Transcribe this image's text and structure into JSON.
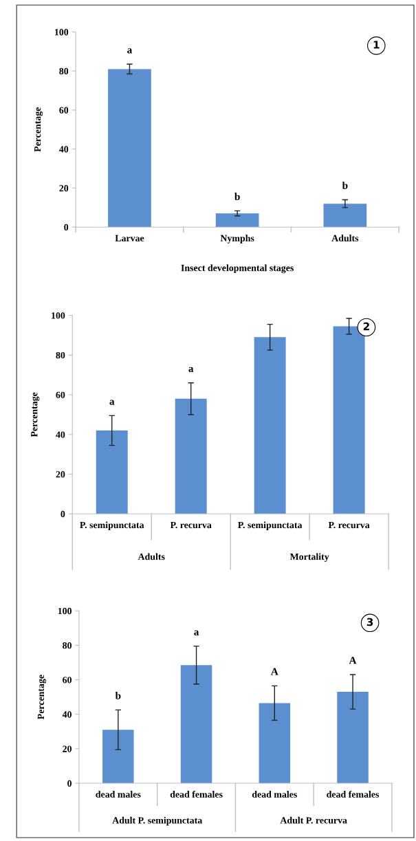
{
  "chart_data": [
    {
      "type": "bar",
      "title": "1",
      "ylabel": "Percentage",
      "xlabel": "Insect developmental stages",
      "categories": [
        "Larvae",
        "Nymphs",
        "Adults"
      ],
      "values": [
        81,
        7,
        12
      ],
      "errors": [
        2.5,
        1.3,
        2
      ],
      "value_labels": [
        "a",
        "b",
        "b"
      ],
      "color": "#5b8fcf",
      "ylim": [
        0,
        100
      ],
      "yticks": [
        0,
        20,
        40,
        60,
        80,
        100
      ],
      "grid": false
    },
    {
      "type": "bar",
      "title": "2",
      "ylabel": "Percentage",
      "categories": [
        "P. semipunctata",
        "P. recurva",
        "P. semipunctata",
        "P. recurva"
      ],
      "values": [
        42,
        58,
        89,
        94.5
      ],
      "errors": [
        7.5,
        8,
        6.5,
        4
      ],
      "value_labels": [
        "a",
        "a",
        null,
        null
      ],
      "annotations": [
        "Adults",
        "Mortality"
      ],
      "color": "#5b8fcf",
      "ylim": [
        0,
        100
      ],
      "yticks": [
        0,
        20,
        40,
        60,
        80,
        100
      ],
      "grid": false
    },
    {
      "type": "bar",
      "title": "3",
      "ylabel": "Percentage",
      "categories": [
        "dead males",
        "dead females",
        "dead males",
        "dead females"
      ],
      "values": [
        31,
        68.5,
        46.5,
        53
      ],
      "errors": [
        11.5,
        11,
        10,
        10
      ],
      "value_labels": [
        "b",
        "a",
        "A",
        "A"
      ],
      "annotations": [
        "Adult P. semipunctata",
        "Adult P. recurva"
      ],
      "color": "#5b8fcf",
      "ylim": [
        0,
        100
      ],
      "yticks": [
        0,
        20,
        40,
        60,
        80,
        100
      ],
      "grid": false
    }
  ]
}
